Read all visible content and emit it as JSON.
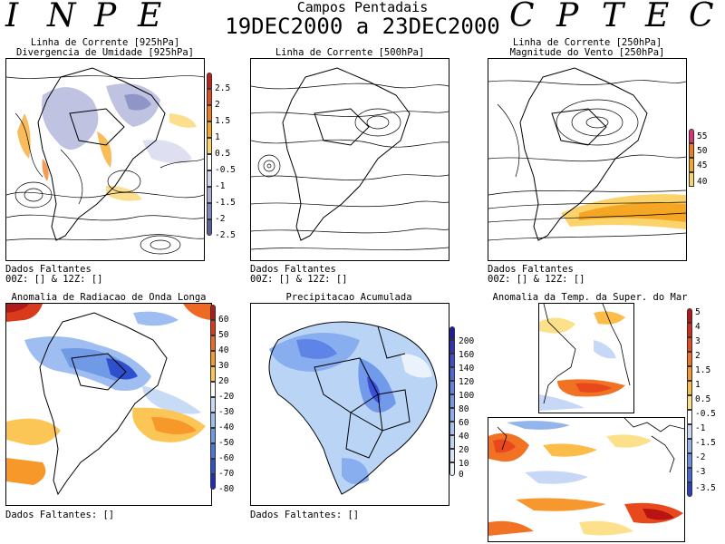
{
  "header": {
    "left_letters": [
      "I",
      "N",
      "P",
      "E"
    ],
    "right_letters": [
      "C",
      "P",
      "T",
      "E",
      "C"
    ],
    "title": "Campos Pentadais",
    "dates": "19DEC2000 a 23DEC2000"
  },
  "panels": {
    "p925": {
      "title_line1": "Linha de Corrente [925hPa]",
      "title_line2": "Divergencia de Umidade [925hPa]",
      "note_line1": "Dados Faltantes",
      "note_line2": "00Z: [] & 12Z: []",
      "colorbar": [
        {
          "label": "2.5",
          "color": "#c0201c"
        },
        {
          "label": "2",
          "color": "#e04a20"
        },
        {
          "label": "1.5",
          "color": "#f07a20"
        },
        {
          "label": "1",
          "color": "#f5a623"
        },
        {
          "label": "0.5",
          "color": "#fbd36a"
        },
        {
          "label": "-0.5",
          "color": "#ffffff"
        },
        {
          "label": "-1",
          "color": "#d3d6ec"
        },
        {
          "label": "-1.5",
          "color": "#a9aed6"
        },
        {
          "label": "-2",
          "color": "#7f86be"
        },
        {
          "label": "-2.5",
          "color": "#565ea0"
        }
      ]
    },
    "p500": {
      "title_line1": "Linha de Corrente [500hPa]",
      "note_line1": "Dados Faltantes",
      "note_line2": "00Z: [] & 12Z: []"
    },
    "p250": {
      "title_line1": "Linha de Corrente [250hPa]",
      "title_line2": "Magnitude do Vento [250hPa]",
      "note_line1": "Dados Faltantes",
      "note_line2": "00Z: [] & 12Z: []",
      "colorbar": [
        {
          "label": "55",
          "color": "#e0307a"
        },
        {
          "label": "50",
          "color": "#f07a20"
        },
        {
          "label": "45",
          "color": "#f5a623"
        },
        {
          "label": "40",
          "color": "#fbd36a"
        }
      ]
    },
    "olr": {
      "title": "Anomalia de Radiacao de Onda Longa",
      "note": "Dados Faltantes: []",
      "colorbar": [
        {
          "label": "60",
          "color": "#b01a1a"
        },
        {
          "label": "50",
          "color": "#d93a1c"
        },
        {
          "label": "40",
          "color": "#ee6a22"
        },
        {
          "label": "30",
          "color": "#f6982a"
        },
        {
          "label": "20",
          "color": "#fbc656"
        },
        {
          "label": "-20",
          "color": "#ffffff"
        },
        {
          "label": "-30",
          "color": "#c8dbf6"
        },
        {
          "label": "-40",
          "color": "#9ebdf0"
        },
        {
          "label": "-50",
          "color": "#7099e6"
        },
        {
          "label": "-60",
          "color": "#4a74dc"
        },
        {
          "label": "-70",
          "color": "#2f50cc"
        },
        {
          "label": "-80",
          "color": "#1e2fb8"
        }
      ]
    },
    "precip": {
      "title": "Precipitacao Acumulada",
      "note": "Dados Faltantes: []",
      "colorbar": [
        {
          "label": "200",
          "color": "#1c1ca8"
        },
        {
          "label": "160",
          "color": "#2a34c8"
        },
        {
          "label": "140",
          "color": "#3a50d8"
        },
        {
          "label": "120",
          "color": "#4a6ae0"
        },
        {
          "label": "100",
          "color": "#5d84e6"
        },
        {
          "label": "80",
          "color": "#729aea"
        },
        {
          "label": "60",
          "color": "#88aef0"
        },
        {
          "label": "40",
          "color": "#a0c2f4"
        },
        {
          "label": "20",
          "color": "#bad4f6"
        },
        {
          "label": "10",
          "color": "#d2e4f8"
        },
        {
          "label": "0",
          "color": "#eaf2fc"
        }
      ]
    },
    "sst": {
      "title": "Anomalia da Temp. da Super. do Mar",
      "colorbar": [
        {
          "label": "5",
          "color": "#b81414"
        },
        {
          "label": "4",
          "color": "#d42a18"
        },
        {
          "label": "3",
          "color": "#e8481c"
        },
        {
          "label": "2",
          "color": "#f27224"
        },
        {
          "label": "1.5",
          "color": "#f7982e"
        },
        {
          "label": "1",
          "color": "#fbbc4a"
        },
        {
          "label": "0.5",
          "color": "#fde08a"
        },
        {
          "label": "-0.5",
          "color": "#ffffff"
        },
        {
          "label": "-1",
          "color": "#c6d8f6"
        },
        {
          "label": "-1.5",
          "color": "#94b4ee"
        },
        {
          "label": "-2",
          "color": "#6a8ee4"
        },
        {
          "label": "-3",
          "color": "#4466d8"
        },
        {
          "label": "-3.5",
          "color": "#2a3ec4"
        }
      ]
    }
  }
}
